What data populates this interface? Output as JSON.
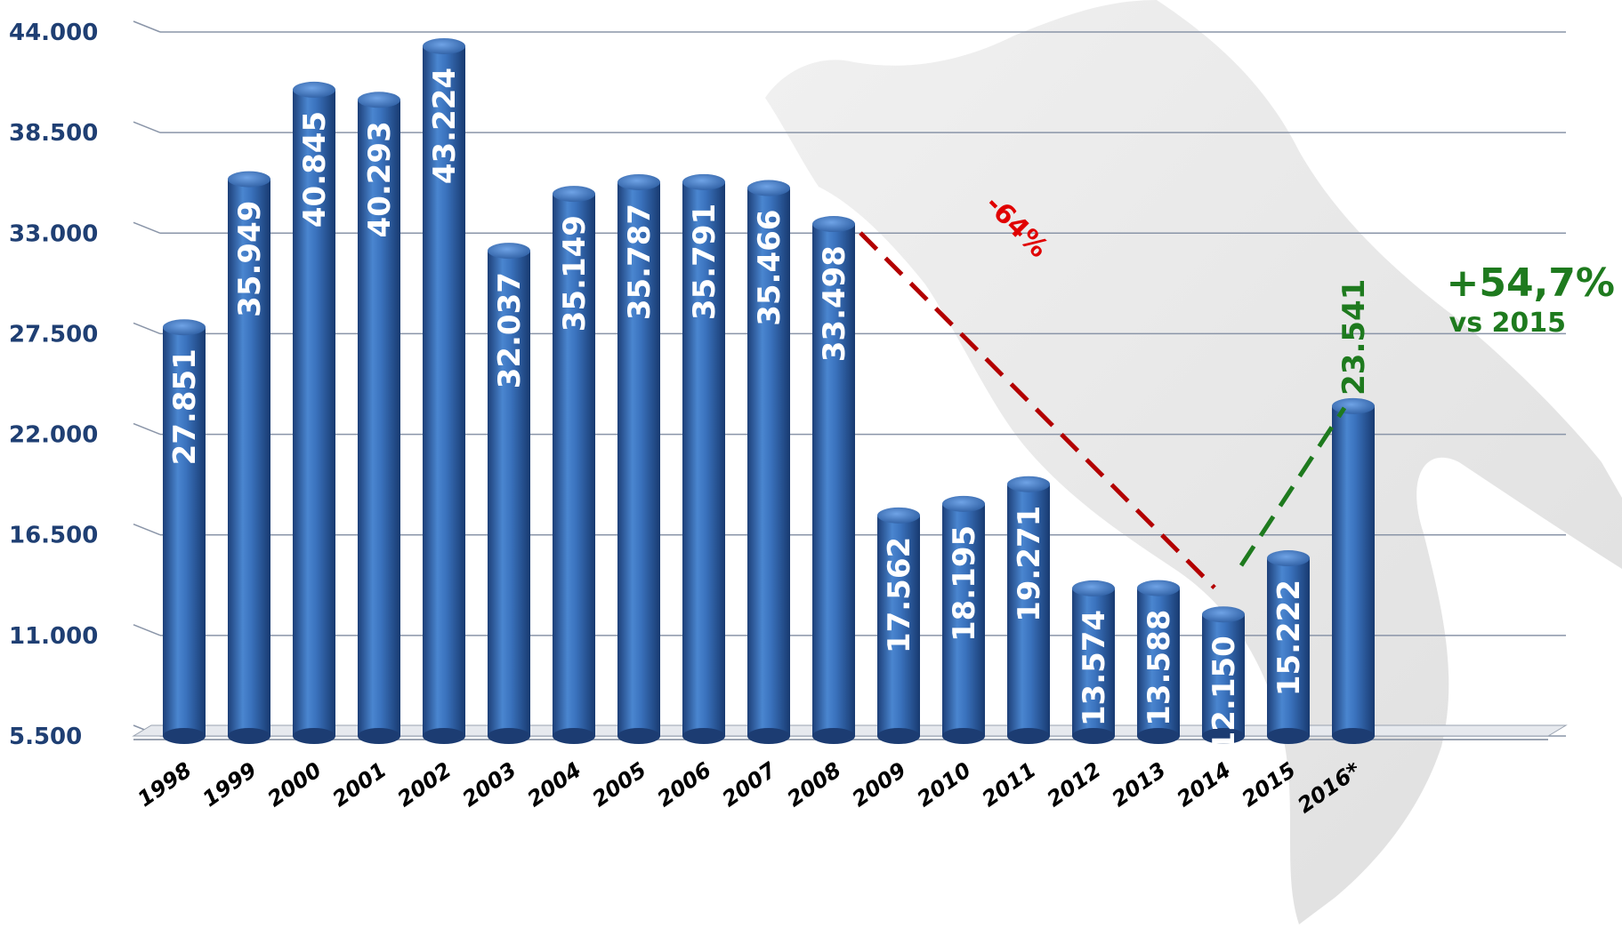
{
  "chart_data": {
    "type": "bar",
    "categories": [
      "1998",
      "1999",
      "2000",
      "2001",
      "2002",
      "2003",
      "2004",
      "2005",
      "2006",
      "2007",
      "2008",
      "2009",
      "2010",
      "2011",
      "2012",
      "2013",
      "2014",
      "2015",
      "2016*"
    ],
    "values": [
      27851,
      35949,
      40845,
      40293,
      43224,
      32037,
      35149,
      35787,
      35791,
      35466,
      33498,
      17562,
      18195,
      19271,
      13574,
      13588,
      12150,
      15222,
      23541
    ],
    "value_labels": [
      "27.851",
      "35.949",
      "40.845",
      "40.293",
      "43.224",
      "32.037",
      "35.149",
      "35.787",
      "35.791",
      "35.466",
      "33.498",
      "17.562",
      "18.195",
      "19.271",
      "13.574",
      "13.588",
      "12.150",
      "15.222",
      "23.541"
    ],
    "ylim": [
      5500,
      44000
    ],
    "yticks": [
      5500,
      11000,
      16500,
      22000,
      27500,
      33000,
      38500,
      44000
    ],
    "ytick_labels": [
      "5.500",
      "11.000",
      "16.500",
      "22.000",
      "27.500",
      "33.000",
      "38.500",
      "44.000"
    ],
    "grid": true,
    "bar_color": "#2f63a8",
    "annotations": {
      "decline_label": "-64%",
      "decline_color": "#b30000",
      "growth_label": "+54,7%",
      "growth_sub": "vs 2015",
      "growth_color": "#1e7a1e"
    }
  }
}
